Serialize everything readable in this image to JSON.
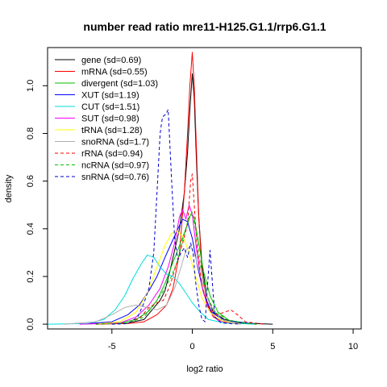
{
  "chart_data": {
    "type": "line",
    "title": "number read ratio mre11-H125.G1.1/rrp6.G1.1",
    "xlabel": "log2 ratio",
    "ylabel": "density",
    "xlim": [
      -9,
      10.5
    ],
    "ylim": [
      -0.02,
      1.16
    ],
    "x_ticks": [
      -5,
      0,
      5,
      10
    ],
    "y_ticks": [
      0.0,
      0.2,
      0.4,
      0.6,
      0.8,
      1.0
    ],
    "x_tick_labels": [
      "-5",
      "0",
      "5",
      "10"
    ],
    "y_tick_labels": [
      "0.0",
      "0.2",
      "0.4",
      "0.6",
      "0.8",
      "1.0"
    ],
    "grid": false,
    "legend_position": "top-left",
    "series": [
      {
        "name": "gene (sd=0.69)",
        "color": "#000000",
        "dash": "solid",
        "points": [
          [
            -6,
            0
          ],
          [
            -4,
            0.005
          ],
          [
            -3,
            0.02
          ],
          [
            -2.5,
            0.06
          ],
          [
            -2,
            0.1
          ],
          [
            -1.7,
            0.14
          ],
          [
            -1.4,
            0.22
          ],
          [
            -1.1,
            0.31
          ],
          [
            -0.8,
            0.4
          ],
          [
            -0.5,
            0.55
          ],
          [
            -0.3,
            0.72
          ],
          [
            -0.15,
            0.9
          ],
          [
            0,
            1.05
          ],
          [
            0.12,
            0.95
          ],
          [
            0.25,
            0.7
          ],
          [
            0.4,
            0.45
          ],
          [
            0.6,
            0.25
          ],
          [
            0.9,
            0.12
          ],
          [
            1.3,
            0.05
          ],
          [
            2,
            0.02
          ],
          [
            3,
            0.005
          ],
          [
            5,
            0
          ]
        ]
      },
      {
        "name": "mRNA (sd=0.55)",
        "color": "#ff0000",
        "dash": "solid",
        "points": [
          [
            -6,
            0
          ],
          [
            -4,
            0.003
          ],
          [
            -3,
            0.01
          ],
          [
            -2.2,
            0.04
          ],
          [
            -1.6,
            0.08
          ],
          [
            -1.2,
            0.15
          ],
          [
            -0.8,
            0.3
          ],
          [
            -0.5,
            0.55
          ],
          [
            -0.3,
            0.8
          ],
          [
            -0.15,
            1.0
          ],
          [
            0,
            1.14
          ],
          [
            0.12,
            1.0
          ],
          [
            0.25,
            0.75
          ],
          [
            0.4,
            0.45
          ],
          [
            0.6,
            0.22
          ],
          [
            0.9,
            0.09
          ],
          [
            1.3,
            0.03
          ],
          [
            2,
            0.008
          ],
          [
            4,
            0
          ]
        ]
      },
      {
        "name": "divergent (sd=1.03)",
        "color": "#00c000",
        "dash": "solid",
        "points": [
          [
            -7,
            0
          ],
          [
            -4.5,
            0.005
          ],
          [
            -3.5,
            0.02
          ],
          [
            -2.8,
            0.05
          ],
          [
            -2.2,
            0.1
          ],
          [
            -1.7,
            0.17
          ],
          [
            -1.2,
            0.26
          ],
          [
            -0.8,
            0.33
          ],
          [
            -0.4,
            0.4
          ],
          [
            -0.1,
            0.46
          ],
          [
            0.1,
            0.45
          ],
          [
            0.35,
            0.36
          ],
          [
            0.7,
            0.22
          ],
          [
            1.1,
            0.12
          ],
          [
            1.6,
            0.05
          ],
          [
            2.3,
            0.015
          ],
          [
            4,
            0
          ]
        ]
      },
      {
        "name": "XUT (sd=1.19)",
        "color": "#0000ff",
        "dash": "solid",
        "points": [
          [
            -7,
            0
          ],
          [
            -5,
            0.01
          ],
          [
            -4,
            0.04
          ],
          [
            -3.3,
            0.08
          ],
          [
            -2.7,
            0.14
          ],
          [
            -2.2,
            0.2
          ],
          [
            -1.7,
            0.28
          ],
          [
            -1.3,
            0.34
          ],
          [
            -0.9,
            0.4
          ],
          [
            -0.6,
            0.44
          ],
          [
            -0.3,
            0.43
          ],
          [
            0,
            0.36
          ],
          [
            0.3,
            0.25
          ],
          [
            0.7,
            0.13
          ],
          [
            1.2,
            0.05
          ],
          [
            2,
            0.015
          ],
          [
            4,
            0
          ]
        ]
      },
      {
        "name": "CUT (sd=1.51)",
        "color": "#00dddd",
        "dash": "solid",
        "points": [
          [
            -9,
            0
          ],
          [
            -6.5,
            0.003
          ],
          [
            -5.5,
            0.02
          ],
          [
            -4.8,
            0.06
          ],
          [
            -4.2,
            0.12
          ],
          [
            -3.7,
            0.19
          ],
          [
            -3.2,
            0.25
          ],
          [
            -2.8,
            0.29
          ],
          [
            -2.4,
            0.28
          ],
          [
            -2,
            0.24
          ],
          [
            -1.6,
            0.21
          ],
          [
            -1.2,
            0.2
          ],
          [
            -0.8,
            0.17
          ],
          [
            -0.4,
            0.13
          ],
          [
            0,
            0.09
          ],
          [
            0.5,
            0.05
          ],
          [
            1,
            0.02
          ],
          [
            2,
            0.005
          ],
          [
            4,
            0
          ]
        ]
      },
      {
        "name": "SUT (sd=0.98)",
        "color": "#ff00ff",
        "dash": "solid",
        "points": [
          [
            -7,
            0
          ],
          [
            -4.5,
            0.005
          ],
          [
            -3.5,
            0.03
          ],
          [
            -2.7,
            0.08
          ],
          [
            -2,
            0.15
          ],
          [
            -1.5,
            0.24
          ],
          [
            -1.1,
            0.34
          ],
          [
            -0.8,
            0.45
          ],
          [
            -0.6,
            0.48
          ],
          [
            -0.4,
            0.44
          ],
          [
            -0.2,
            0.5
          ],
          [
            0,
            0.46
          ],
          [
            0.25,
            0.32
          ],
          [
            0.6,
            0.16
          ],
          [
            1,
            0.06
          ],
          [
            1.6,
            0.015
          ],
          [
            3,
            0
          ]
        ]
      },
      {
        "name": "tRNA (sd=1.28)",
        "color": "#ffff00",
        "dash": "solid",
        "points": [
          [
            -6,
            0
          ],
          [
            -4.5,
            0.01
          ],
          [
            -3.5,
            0.05
          ],
          [
            -2.8,
            0.13
          ],
          [
            -2.2,
            0.24
          ],
          [
            -1.7,
            0.33
          ],
          [
            -1.3,
            0.38
          ],
          [
            -1,
            0.39
          ],
          [
            -0.6,
            0.37
          ],
          [
            -0.2,
            0.3
          ],
          [
            0.2,
            0.2
          ],
          [
            0.6,
            0.11
          ],
          [
            1.1,
            0.05
          ],
          [
            1.8,
            0.015
          ],
          [
            3,
            0
          ]
        ]
      },
      {
        "name": "snoRNA (sd=1.7)",
        "color": "#b0b0b0",
        "dash": "solid",
        "points": [
          [
            -8,
            0
          ],
          [
            -6,
            0.01
          ],
          [
            -5,
            0.04
          ],
          [
            -4.2,
            0.07
          ],
          [
            -3.5,
            0.08
          ],
          [
            -2.8,
            0.07
          ],
          [
            -2.2,
            0.06
          ],
          [
            -1.6,
            0.08
          ],
          [
            -1.1,
            0.15
          ],
          [
            -0.7,
            0.24
          ],
          [
            -0.4,
            0.31
          ],
          [
            -0.1,
            0.33
          ],
          [
            0.2,
            0.28
          ],
          [
            0.6,
            0.18
          ],
          [
            1.1,
            0.08
          ],
          [
            1.8,
            0.02
          ],
          [
            3,
            0
          ]
        ]
      },
      {
        "name": "rRNA (sd=0.94)",
        "color": "#ff0000",
        "dash": "dashed",
        "points": [
          [
            -6,
            0
          ],
          [
            -4,
            0.004
          ],
          [
            -3.2,
            0.03
          ],
          [
            -2.7,
            0.07
          ],
          [
            -2.2,
            0.09
          ],
          [
            -1.8,
            0.1
          ],
          [
            -1.4,
            0.16
          ],
          [
            -1,
            0.25
          ],
          [
            -0.6,
            0.34
          ],
          [
            -0.3,
            0.42
          ],
          [
            -0.1,
            0.6
          ],
          [
            0,
            0.63
          ],
          [
            0.12,
            0.5
          ],
          [
            0.3,
            0.32
          ],
          [
            0.6,
            0.16
          ],
          [
            1,
            0.07
          ],
          [
            1.5,
            0.04
          ],
          [
            2,
            0.05
          ],
          [
            2.4,
            0.06
          ],
          [
            2.8,
            0.04
          ],
          [
            3.3,
            0.01
          ],
          [
            4.5,
            0
          ]
        ]
      },
      {
        "name": "ncRNA (sd=0.97)",
        "color": "#00c000",
        "dash": "dashed",
        "points": [
          [
            -6,
            0
          ],
          [
            -4,
            0.005
          ],
          [
            -3,
            0.03
          ],
          [
            -2.4,
            0.08
          ],
          [
            -1.8,
            0.14
          ],
          [
            -1.3,
            0.2
          ],
          [
            -0.9,
            0.27
          ],
          [
            -0.5,
            0.38
          ],
          [
            -0.2,
            0.45
          ],
          [
            0,
            0.47
          ],
          [
            0.2,
            0.4
          ],
          [
            0.5,
            0.25
          ],
          [
            0.9,
            0.12
          ],
          [
            1.4,
            0.05
          ],
          [
            2.2,
            0.02
          ],
          [
            3,
            0.005
          ],
          [
            4,
            0
          ]
        ]
      },
      {
        "name": "snRNA (sd=0.76)",
        "color": "#0000cc",
        "dash": "dashed",
        "points": [
          [
            -5,
            0
          ],
          [
            -4,
            0.002
          ],
          [
            -3.4,
            0.03
          ],
          [
            -3,
            0.09
          ],
          [
            -2.7,
            0.15
          ],
          [
            -2.4,
            0.3
          ],
          [
            -2.2,
            0.55
          ],
          [
            -2,
            0.8
          ],
          [
            -1.85,
            0.87
          ],
          [
            -1.65,
            0.88
          ],
          [
            -1.5,
            0.9
          ],
          [
            -1.3,
            0.62
          ],
          [
            -1.1,
            0.36
          ],
          [
            -0.9,
            0.27
          ],
          [
            -0.7,
            0.3
          ],
          [
            -0.5,
            0.32
          ],
          [
            -0.3,
            0.28
          ],
          [
            -0.1,
            0.34
          ],
          [
            0.05,
            0.3
          ],
          [
            0.2,
            0.18
          ],
          [
            0.4,
            0.08
          ],
          [
            0.6,
            0.02
          ],
          [
            0.8,
            0.01
          ],
          [
            0.95,
            0.17
          ],
          [
            1.1,
            0.31
          ],
          [
            1.25,
            0.17
          ],
          [
            1.4,
            0.03
          ],
          [
            1.8,
            0.005
          ],
          [
            3,
            0
          ]
        ]
      }
    ]
  }
}
